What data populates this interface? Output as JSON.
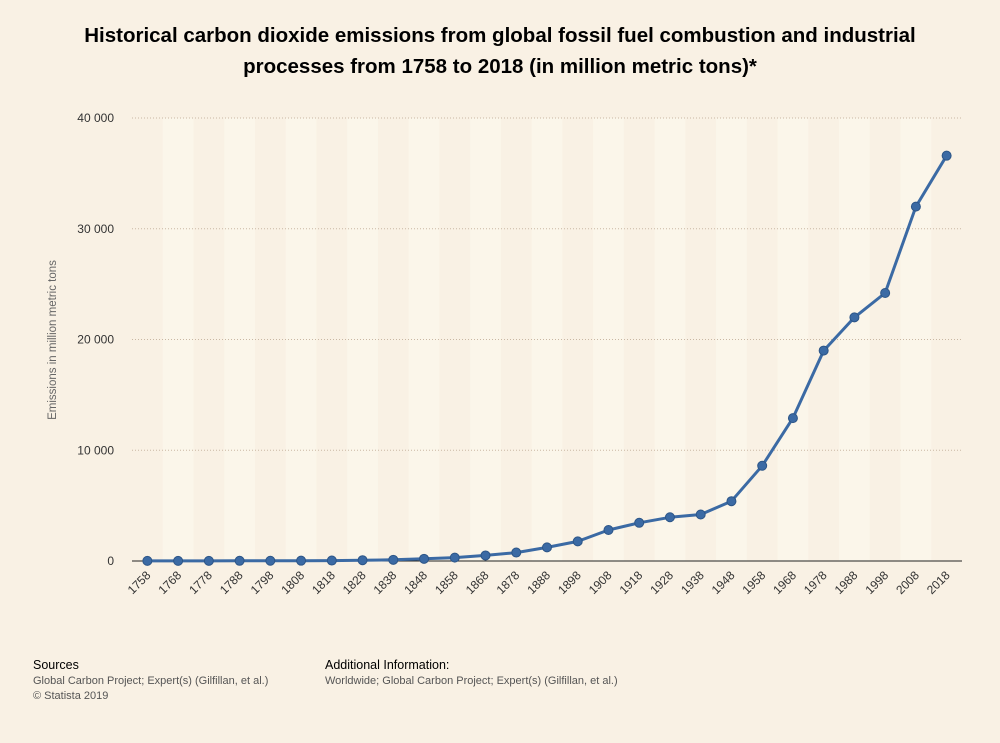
{
  "chart_data": {
    "type": "line",
    "title": "Historical carbon dioxide emissions from global fossil fuel combustion and industrial processes from 1758 to 2018 (in million metric tons)*",
    "ylabel": "Emissions in million metric tons",
    "xlabel": "",
    "x": [
      "1758",
      "1768",
      "1778",
      "1788",
      "1798",
      "1808",
      "1818",
      "1828",
      "1838",
      "1848",
      "1858",
      "1868",
      "1878",
      "1888",
      "1898",
      "1908",
      "1918",
      "1928",
      "1938",
      "1948",
      "1958",
      "1968",
      "1978",
      "1988",
      "1998",
      "2008",
      "2018"
    ],
    "series": [
      {
        "values": [
          10,
          11,
          13,
          17,
          22,
          29,
          40,
          71,
          107,
          196,
          304,
          502,
          762,
          1230,
          1770,
          2800,
          3450,
          3950,
          4200,
          5400,
          8600,
          12900,
          19000,
          22000,
          24200,
          32000,
          36600
        ]
      }
    ],
    "ylim": [
      0,
      40000
    ],
    "yticks": [
      0,
      10000,
      20000,
      30000,
      40000
    ],
    "ytick_labels": [
      "0",
      "10 000",
      "20 000",
      "30 000",
      "40 000"
    ],
    "grid": true,
    "colors": {
      "line": "#3b6aa4",
      "marker": "#3b6aa4",
      "band_light": "#fbf6ea",
      "background": "#f9f1e4"
    }
  },
  "footer": {
    "sources_heading": "Sources",
    "sources_line1": "Global Carbon Project; Expert(s) (Gilfillan, et al.)",
    "sources_line2": "© Statista 2019",
    "additional_heading": "Additional Information:",
    "additional_text": "Worldwide; Global Carbon Project; Expert(s) (Gilfillan, et al.)"
  }
}
